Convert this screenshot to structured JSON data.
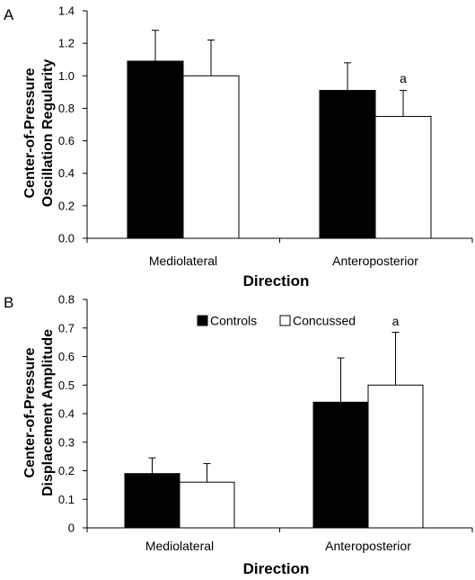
{
  "chart_data": [
    {
      "panel_label": "A",
      "type": "bar",
      "categories": [
        "Mediolateral",
        "Anteroposterior"
      ],
      "series": [
        {
          "name": "Controls",
          "color": "#000000",
          "values": [
            1.09,
            0.91
          ],
          "errors": [
            0.19,
            0.17
          ]
        },
        {
          "name": "Concussed",
          "color": "#ffffff",
          "values": [
            1.0,
            0.75
          ],
          "errors": [
            0.22,
            0.16
          ]
        }
      ],
      "ylabel_line1": "Center-of-Pressure",
      "ylabel_line2": "Oscillation Regularity",
      "xlabel": "Direction",
      "ylim": [
        0,
        1.4
      ],
      "yticks": [
        0,
        0.2,
        0.4,
        0.6,
        0.8,
        1.0,
        1.2,
        1.4
      ],
      "ytick_labels": [
        "0.0",
        "0.2",
        "0.4",
        "0.6",
        "0.8",
        "1.0",
        "1.2",
        "1.4"
      ],
      "annotations": [
        {
          "text": "a",
          "category": 1,
          "series": 1
        }
      ],
      "legend": null,
      "grid": false
    },
    {
      "panel_label": "B",
      "type": "bar",
      "categories": [
        "Mediolateral",
        "Anteroposterior"
      ],
      "series": [
        {
          "name": "Controls",
          "color": "#000000",
          "values": [
            0.19,
            0.44
          ],
          "errors": [
            0.055,
            0.155
          ]
        },
        {
          "name": "Concussed",
          "color": "#ffffff",
          "values": [
            0.16,
            0.5
          ],
          "errors": [
            0.065,
            0.185
          ]
        }
      ],
      "ylabel_line1": "Center-of-Pressure",
      "ylabel_line2": "Displacement Amplitude",
      "xlabel": "Direction",
      "ylim": [
        0,
        0.8
      ],
      "yticks": [
        0,
        0.1,
        0.2,
        0.3,
        0.4,
        0.5,
        0.6,
        0.7,
        0.8
      ],
      "ytick_labels": [
        "0",
        "0.1",
        "0.2",
        "0.3",
        "0.4",
        "0.5",
        "0.6",
        "0.7",
        "0.8"
      ],
      "annotations": [
        {
          "text": "a",
          "category": 1,
          "series": 1
        }
      ],
      "legend": {
        "position": "top",
        "items": [
          "Controls",
          "Concussed"
        ]
      },
      "grid": false
    }
  ]
}
